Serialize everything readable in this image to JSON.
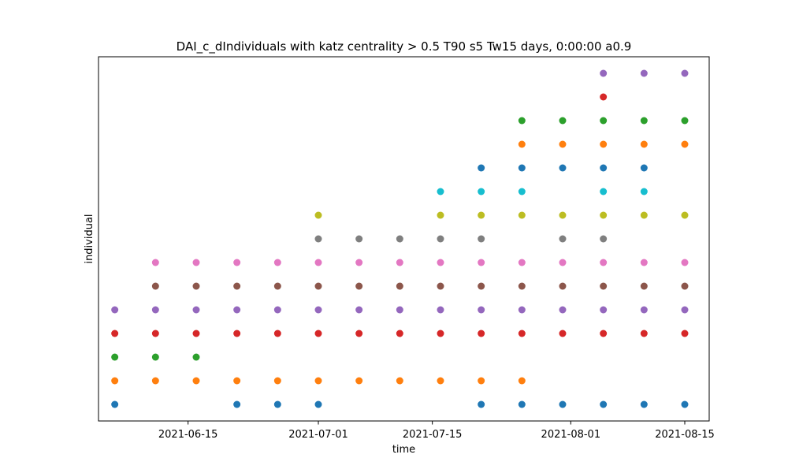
{
  "chart_data": {
    "type": "scatter",
    "title": "DAI_c_dIndividuals with katz centrality > 0.5 T90 s5 Tw15 days, 0:00:00 a0.9",
    "xlabel": "time",
    "ylabel": "individual",
    "x_tick_labels": [
      "2021-06-15",
      "2021-07-01",
      "2021-07-15",
      "2021-08-01",
      "2021-08-15"
    ],
    "x_ticks": [
      "2021-06-15",
      "2021-07-01",
      "2021-07-15",
      "2021-08-01",
      "2021-08-15"
    ],
    "xlim": [
      "2021-06-04",
      "2021-08-18"
    ],
    "y_ticks_shown": false,
    "ylim": [
      -0.7,
      14.7
    ],
    "grid": false,
    "colors": [
      "#1f77b4",
      "#ff7f0e",
      "#2ca02c",
      "#d62728",
      "#9467bd",
      "#8c564b",
      "#e377c2",
      "#7f7f7f",
      "#bcbd22",
      "#17becf"
    ],
    "series": [
      {
        "level": 0,
        "color": "#1f77b4",
        "x": [
          "2021-06-06",
          "2021-06-21",
          "2021-06-26",
          "2021-07-01",
          "2021-07-21",
          "2021-07-26",
          "2021-07-31",
          "2021-08-05",
          "2021-08-10",
          "2021-08-15"
        ]
      },
      {
        "level": 1,
        "color": "#ff7f0e",
        "x": [
          "2021-06-06",
          "2021-06-11",
          "2021-06-16",
          "2021-06-21",
          "2021-06-26",
          "2021-07-01",
          "2021-07-06",
          "2021-07-11",
          "2021-07-16",
          "2021-07-21",
          "2021-07-26"
        ]
      },
      {
        "level": 2,
        "color": "#2ca02c",
        "x": [
          "2021-06-06",
          "2021-06-11",
          "2021-06-16"
        ]
      },
      {
        "level": 3,
        "color": "#d62728",
        "x": [
          "2021-06-06",
          "2021-06-11",
          "2021-06-16",
          "2021-06-21",
          "2021-06-26",
          "2021-07-01",
          "2021-07-06",
          "2021-07-11",
          "2021-07-16",
          "2021-07-21",
          "2021-07-26",
          "2021-07-31",
          "2021-08-05",
          "2021-08-10",
          "2021-08-15"
        ]
      },
      {
        "level": 4,
        "color": "#9467bd",
        "x": [
          "2021-06-06",
          "2021-06-11",
          "2021-06-16",
          "2021-06-21",
          "2021-06-26",
          "2021-07-01",
          "2021-07-06",
          "2021-07-11",
          "2021-07-16",
          "2021-07-21",
          "2021-07-26",
          "2021-07-31",
          "2021-08-05",
          "2021-08-10",
          "2021-08-15"
        ]
      },
      {
        "level": 5,
        "color": "#8c564b",
        "x": [
          "2021-06-11",
          "2021-06-16",
          "2021-06-21",
          "2021-06-26",
          "2021-07-01",
          "2021-07-06",
          "2021-07-11",
          "2021-07-16",
          "2021-07-21",
          "2021-07-26",
          "2021-07-31",
          "2021-08-05",
          "2021-08-10",
          "2021-08-15"
        ]
      },
      {
        "level": 6,
        "color": "#e377c2",
        "x": [
          "2021-06-11",
          "2021-06-16",
          "2021-06-21",
          "2021-06-26",
          "2021-07-01",
          "2021-07-06",
          "2021-07-11",
          "2021-07-16",
          "2021-07-21",
          "2021-07-26",
          "2021-07-31",
          "2021-08-05",
          "2021-08-10",
          "2021-08-15"
        ]
      },
      {
        "level": 7,
        "color": "#7f7f7f",
        "x": [
          "2021-07-01",
          "2021-07-06",
          "2021-07-11",
          "2021-07-16",
          "2021-07-21",
          "2021-07-31",
          "2021-08-05"
        ]
      },
      {
        "level": 8,
        "color": "#bcbd22",
        "x": [
          "2021-07-01",
          "2021-07-16",
          "2021-07-21",
          "2021-07-26",
          "2021-07-31",
          "2021-08-05",
          "2021-08-10",
          "2021-08-15"
        ]
      },
      {
        "level": 9,
        "color": "#17becf",
        "x": [
          "2021-07-16",
          "2021-07-21",
          "2021-07-26",
          "2021-08-05",
          "2021-08-10"
        ]
      },
      {
        "level": 10,
        "color": "#1f77b4",
        "x": [
          "2021-07-21",
          "2021-07-26",
          "2021-07-31",
          "2021-08-05",
          "2021-08-10"
        ]
      },
      {
        "level": 11,
        "color": "#ff7f0e",
        "x": [
          "2021-07-26",
          "2021-07-31",
          "2021-08-05",
          "2021-08-10",
          "2021-08-15"
        ]
      },
      {
        "level": 12,
        "color": "#2ca02c",
        "x": [
          "2021-07-26",
          "2021-07-31",
          "2021-08-05",
          "2021-08-10",
          "2021-08-15"
        ]
      },
      {
        "level": 13,
        "color": "#d62728",
        "x": [
          "2021-08-05"
        ]
      },
      {
        "level": 14,
        "color": "#9467bd",
        "x": [
          "2021-08-05",
          "2021-08-10",
          "2021-08-15"
        ]
      }
    ]
  }
}
